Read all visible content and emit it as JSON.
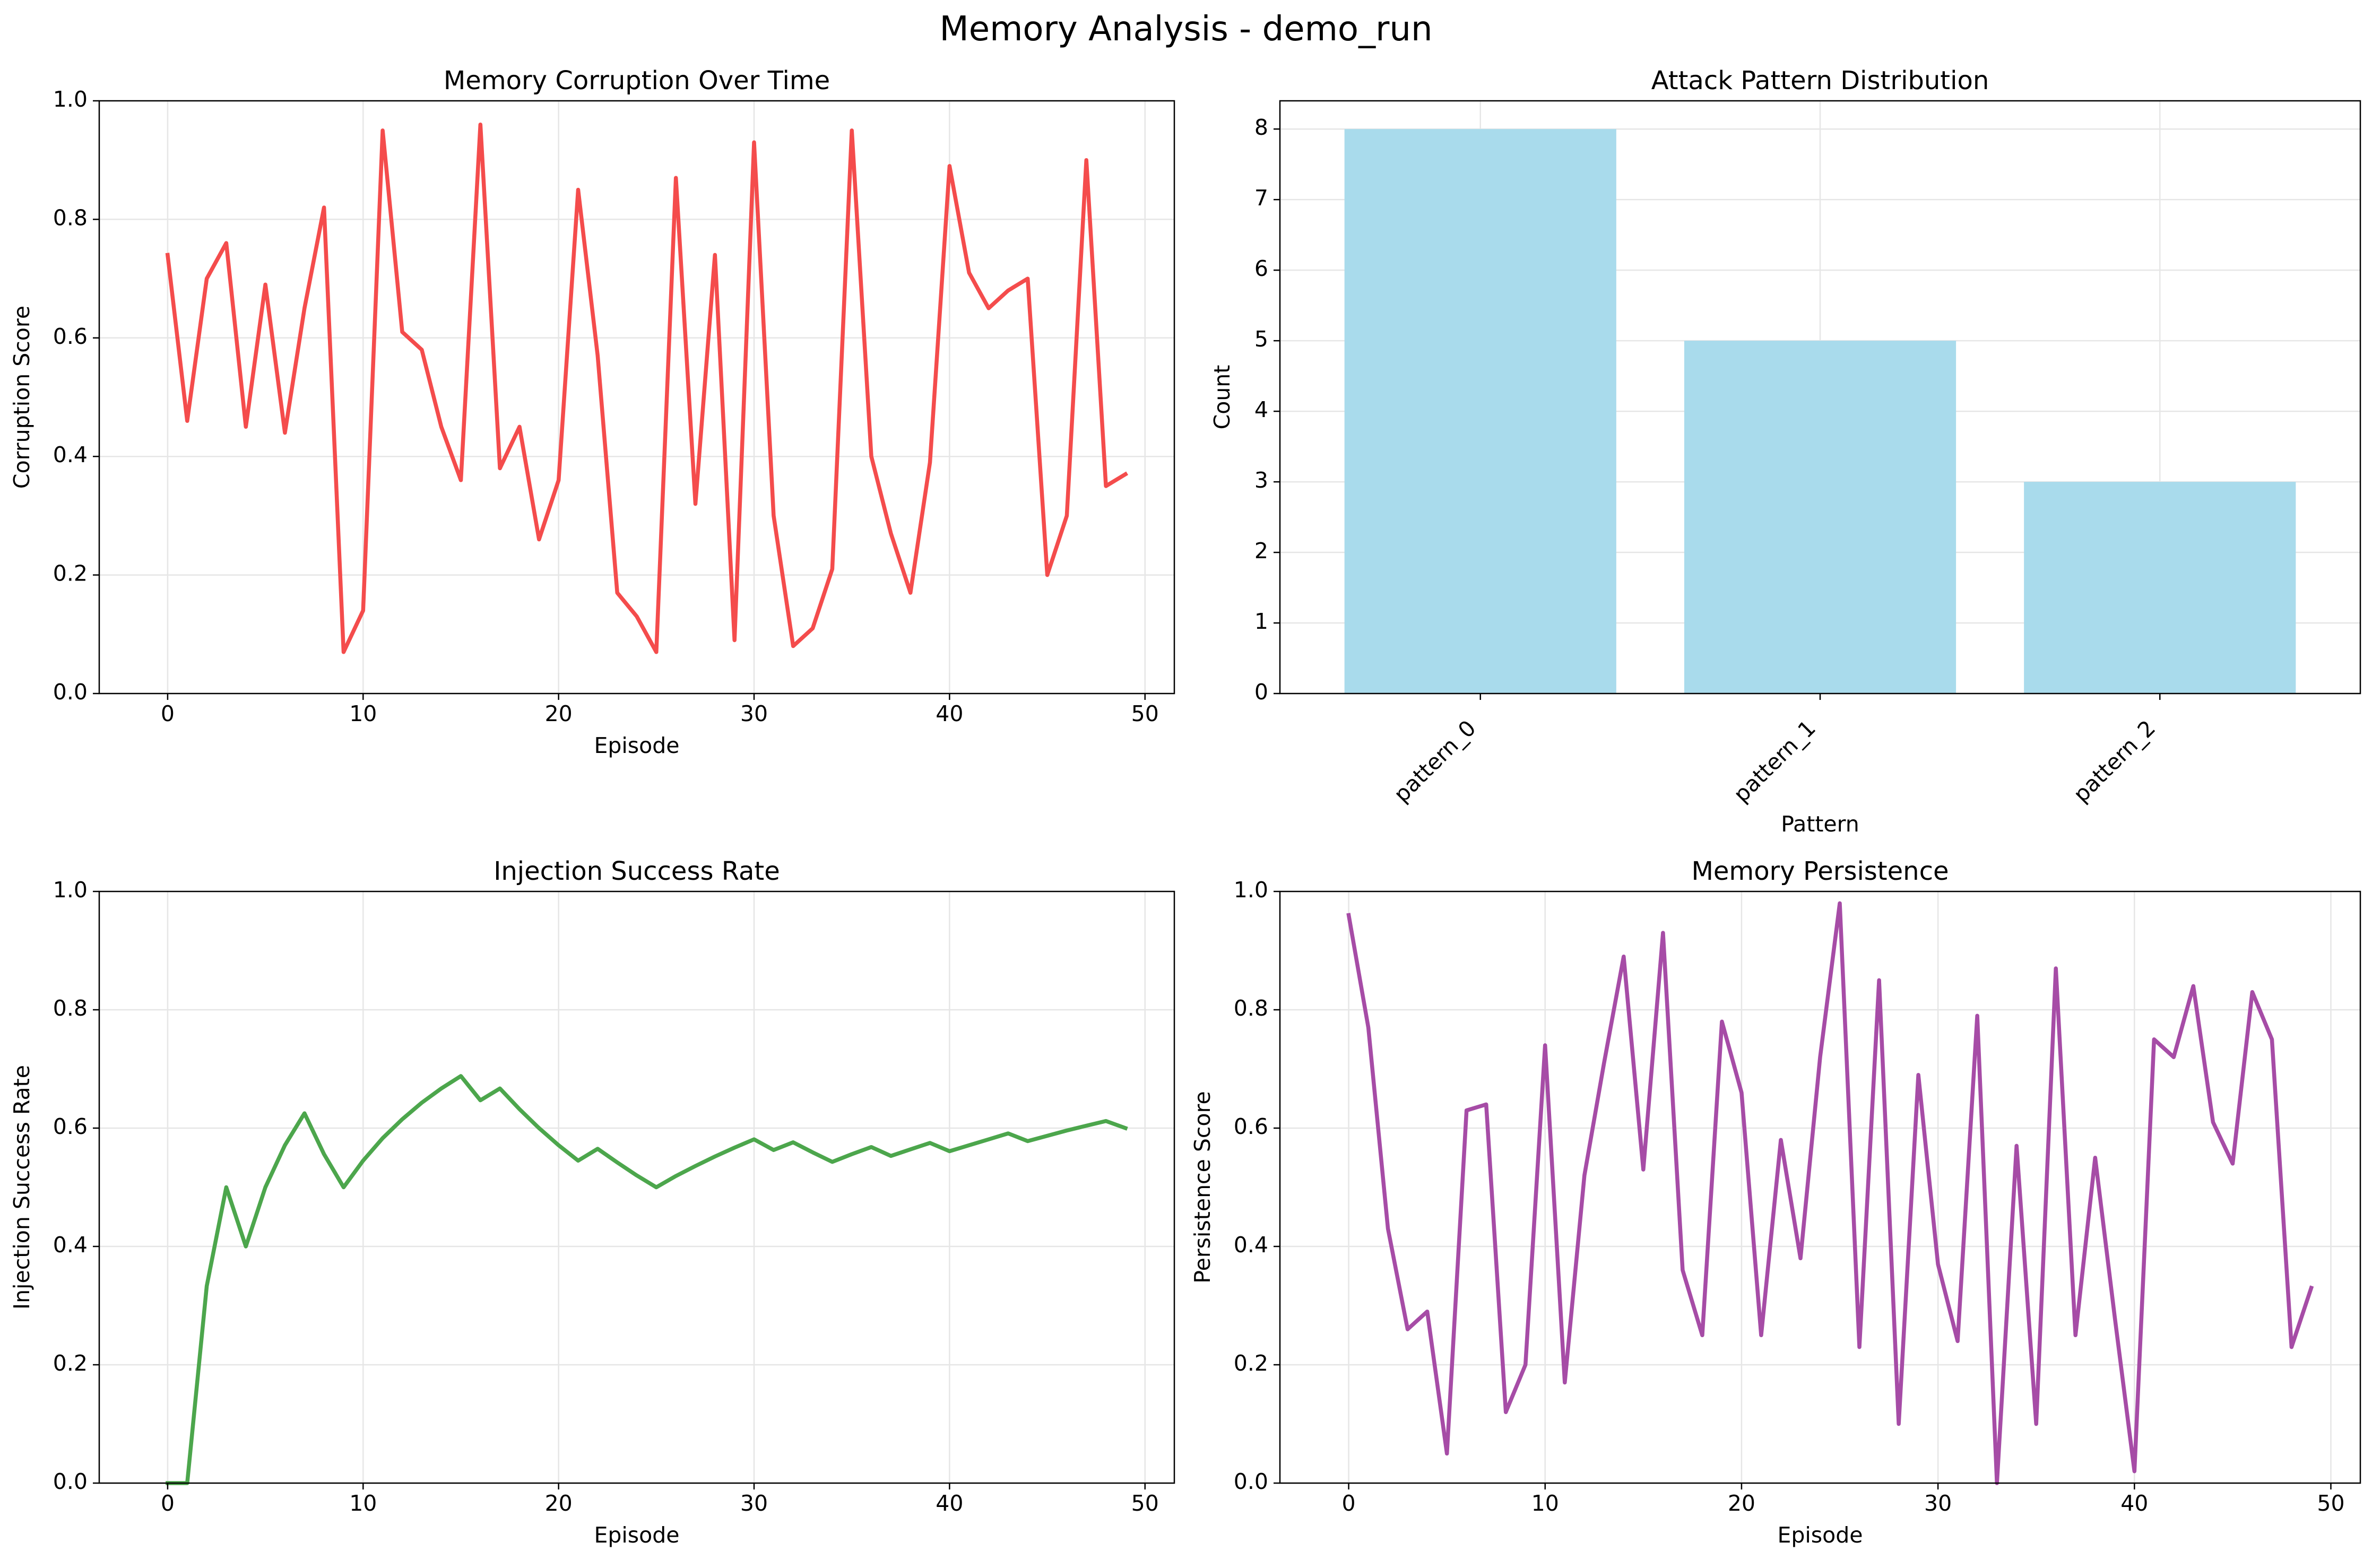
{
  "suptitle": "Memory Analysis - demo_run",
  "colors": {
    "corruption": "#f44c4c",
    "injection": "#4ca64c",
    "persistence": "#a64ca6",
    "bars": "#a9dbec",
    "grid": "#e6e6e6",
    "axes": "#000000"
  },
  "chart_data": [
    {
      "type": "line",
      "title": "Memory Corruption Over Time",
      "xlabel": "Episode",
      "ylabel": "Corruption Score",
      "xlim": [
        -3.5,
        51.5
      ],
      "ylim": [
        0,
        1
      ],
      "xticks": [
        0,
        10,
        20,
        30,
        40,
        50
      ],
      "yticks": [
        0.0,
        0.2,
        0.4,
        0.6,
        0.8,
        1.0
      ],
      "grid": true,
      "color": "#f44c4c",
      "x": [
        0,
        1,
        2,
        3,
        4,
        5,
        6,
        7,
        8,
        9,
        10,
        11,
        12,
        13,
        14,
        15,
        16,
        17,
        18,
        19,
        20,
        21,
        22,
        23,
        24,
        25,
        26,
        27,
        28,
        29,
        30,
        31,
        32,
        33,
        34,
        35,
        36,
        37,
        38,
        39,
        40,
        41,
        42,
        43,
        44,
        45,
        46,
        47,
        48,
        49
      ],
      "values": [
        0.74,
        0.46,
        0.7,
        0.76,
        0.45,
        0.69,
        0.44,
        0.65,
        0.82,
        0.07,
        0.14,
        0.95,
        0.61,
        0.58,
        0.45,
        0.36,
        0.96,
        0.38,
        0.45,
        0.26,
        0.36,
        0.85,
        0.57,
        0.17,
        0.13,
        0.07,
        0.87,
        0.32,
        0.74,
        0.09,
        0.93,
        0.3,
        0.08,
        0.11,
        0.21,
        0.95,
        0.4,
        0.27,
        0.17,
        0.39,
        0.89,
        0.71,
        0.65,
        0.68,
        0.7,
        0.2,
        0.3,
        0.9,
        0.35,
        0.37
      ]
    },
    {
      "type": "bar",
      "title": "Attack Pattern Distribution",
      "xlabel": "Pattern",
      "ylabel": "Count",
      "categories": [
        "pattern_0",
        "pattern_1",
        "pattern_2"
      ],
      "values": [
        8,
        5,
        3
      ],
      "ylim": [
        0,
        8.4
      ],
      "yticks": [
        0,
        1,
        2,
        3,
        4,
        5,
        6,
        7,
        8
      ],
      "grid": true,
      "color": "#a9dbec"
    },
    {
      "type": "line",
      "title": "Injection Success Rate",
      "xlabel": "Episode",
      "ylabel": "Injection Success Rate",
      "xlim": [
        -3.5,
        51.5
      ],
      "ylim": [
        0,
        1
      ],
      "xticks": [
        0,
        10,
        20,
        30,
        40,
        50
      ],
      "yticks": [
        0.0,
        0.2,
        0.4,
        0.6,
        0.8,
        1.0
      ],
      "grid": true,
      "color": "#4ca64c",
      "x": [
        0,
        1,
        2,
        3,
        4,
        5,
        6,
        7,
        8,
        9,
        10,
        11,
        12,
        13,
        14,
        15,
        16,
        17,
        18,
        19,
        20,
        21,
        22,
        23,
        24,
        25,
        26,
        27,
        28,
        29,
        30,
        31,
        32,
        33,
        34,
        35,
        36,
        37,
        38,
        39,
        40,
        41,
        42,
        43,
        44,
        45,
        46,
        47,
        48,
        49
      ],
      "values": [
        0.0,
        0.0,
        0.333,
        0.5,
        0.4,
        0.5,
        0.571,
        0.625,
        0.556,
        0.5,
        0.545,
        0.583,
        0.615,
        0.643,
        0.667,
        0.688,
        0.647,
        0.667,
        0.632,
        0.6,
        0.571,
        0.545,
        0.565,
        0.542,
        0.52,
        0.5,
        0.519,
        0.536,
        0.552,
        0.567,
        0.581,
        0.563,
        0.576,
        0.559,
        0.543,
        0.556,
        0.568,
        0.553,
        0.564,
        0.575,
        0.561,
        0.571,
        0.581,
        0.591,
        0.578,
        0.587,
        0.596,
        0.604,
        0.612,
        0.6
      ]
    },
    {
      "type": "line",
      "title": "Memory Persistence",
      "xlabel": "Episode",
      "ylabel": "Persistence Score",
      "xlim": [
        -3.5,
        51.5
      ],
      "ylim": [
        0,
        1
      ],
      "xticks": [
        0,
        10,
        20,
        30,
        40,
        50
      ],
      "yticks": [
        0.0,
        0.2,
        0.4,
        0.6,
        0.8,
        1.0
      ],
      "grid": true,
      "color": "#a64ca6",
      "x": [
        0,
        1,
        2,
        3,
        4,
        5,
        6,
        7,
        8,
        9,
        10,
        11,
        12,
        13,
        14,
        15,
        16,
        17,
        18,
        19,
        20,
        21,
        22,
        23,
        24,
        25,
        26,
        27,
        28,
        29,
        30,
        31,
        32,
        33,
        34,
        35,
        36,
        37,
        38,
        39,
        40,
        41,
        42,
        43,
        44,
        45,
        46,
        47,
        48,
        49
      ],
      "values": [
        0.96,
        0.77,
        0.43,
        0.26,
        0.29,
        0.05,
        0.63,
        0.64,
        0.12,
        0.2,
        0.74,
        0.17,
        0.52,
        0.71,
        0.89,
        0.53,
        0.93,
        0.36,
        0.25,
        0.78,
        0.66,
        0.25,
        0.58,
        0.38,
        0.72,
        0.98,
        0.23,
        0.85,
        0.1,
        0.69,
        0.37,
        0.24,
        0.79,
        0.0,
        0.57,
        0.1,
        0.87,
        0.25,
        0.55,
        0.28,
        0.02,
        0.75,
        0.72,
        0.84,
        0.61,
        0.54,
        0.83,
        0.75,
        0.23,
        0.33
      ]
    }
  ]
}
